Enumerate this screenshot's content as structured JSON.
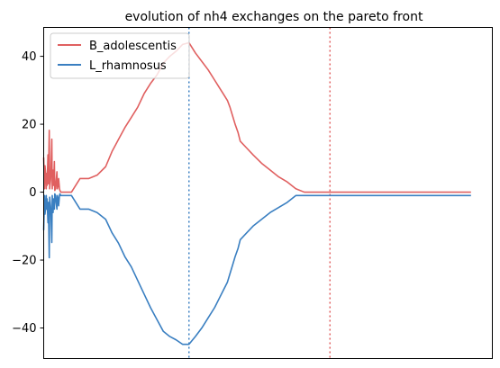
{
  "chart_data": {
    "type": "line",
    "title": "evolution of nh4 exchanges on the pareto front",
    "xlabel": "",
    "ylabel": "",
    "ylim": [
      -49,
      48.5
    ],
    "xlim": [
      0,
      105
    ],
    "x_ticks_shown": false,
    "y_ticks": [
      -40,
      -20,
      0,
      20,
      40
    ],
    "y_tick_labels": [
      "−40",
      "−20",
      "0",
      "20",
      "40"
    ],
    "grid": false,
    "legend": "top-left",
    "series": [
      {
        "name": "B_adolescentis",
        "color": "#e06060",
        "x": [
          0.0,
          0.2,
          0.3,
          0.5,
          0.6,
          0.7,
          0.8,
          1.0,
          1.1,
          1.3,
          1.4,
          1.6,
          1.7,
          1.9,
          2.0,
          2.2,
          2.3,
          2.5,
          2.6,
          2.8,
          2.9,
          3.1,
          3.2,
          3.4,
          3.5,
          3.7,
          3.8,
          4.0,
          4.1,
          4.3,
          4.5,
          6.5,
          8.5,
          10.5,
          12.5,
          14.5,
          16.0,
          17.5,
          19.0,
          20.5,
          22.0,
          23.5,
          25.0,
          26.5,
          28.0,
          29.5,
          31.0,
          32.5,
          34.0,
          35.5,
          37.0,
          38.5,
          40.0,
          41.0,
          42.0,
          43.0,
          43.6,
          44.2,
          44.8,
          45.5,
          46.0,
          47.5,
          49.0,
          51.0,
          53.0,
          55.0,
          57.0,
          59.0,
          61.0,
          63.0,
          65.0,
          67.0,
          69.0,
          71.0,
          73.0,
          75.0,
          77.0,
          78.5,
          80.0,
          80.5,
          85.0,
          90.0,
          95.0,
          100.0
        ],
        "y": [
          10.2,
          1.0,
          7.8,
          5.0,
          1.0,
          5.5,
          2.0,
          11.0,
          2.5,
          18.2,
          1.0,
          3.5,
          6.0,
          15.6,
          1.0,
          6.5,
          2.0,
          9.0,
          0.5,
          1.0,
          3.0,
          6.0,
          1.0,
          2.0,
          4.0,
          1.0,
          0.5,
          0.0,
          0.0,
          0.0,
          0.0,
          0.0,
          4.0,
          4.0,
          5.0,
          7.5,
          12.0,
          15.5,
          19.0,
          22.0,
          25.0,
          29.0,
          32.0,
          34.5,
          38.0,
          40.0,
          41.5,
          43.5,
          44.0,
          41.0,
          38.5,
          36.0,
          33.0,
          31.0,
          29.0,
          27.0,
          25.0,
          22.5,
          20.0,
          17.5,
          15.0,
          13.0,
          11.0,
          8.5,
          6.5,
          4.5,
          3.0,
          1.0,
          0.0,
          0.0,
          0.0,
          0.0,
          0.0,
          0.0,
          0.0,
          0.0,
          0.0,
          0.0,
          0.0,
          0.0,
          0.0,
          0.0,
          0.0,
          0.0
        ]
      },
      {
        "name": "L_rhamnosus",
        "color": "#3a7fc1",
        "x": [
          0.0,
          0.2,
          0.3,
          0.5,
          0.6,
          0.7,
          0.8,
          1.0,
          1.1,
          1.3,
          1.4,
          1.6,
          1.7,
          1.9,
          2.0,
          2.2,
          2.3,
          2.5,
          2.6,
          2.8,
          2.9,
          3.1,
          3.2,
          3.4,
          3.5,
          3.7,
          3.8,
          4.0,
          4.1,
          4.3,
          4.5,
          6.5,
          8.5,
          10.5,
          12.5,
          14.5,
          16.0,
          17.5,
          19.0,
          20.5,
          22.0,
          23.5,
          25.0,
          26.5,
          28.0,
          29.5,
          31.0,
          32.5,
          34.0,
          35.5,
          37.0,
          38.5,
          40.0,
          41.0,
          42.0,
          43.0,
          43.6,
          44.2,
          44.8,
          45.5,
          46.0,
          47.5,
          49.0,
          51.0,
          53.0,
          55.0,
          57.0,
          59.0,
          61.0,
          63.0,
          65.0,
          67.0,
          69.0,
          71.0,
          73.0,
          75.0,
          77.0,
          78.5,
          80.0,
          80.5,
          85.0,
          90.0,
          95.0,
          100.0
        ],
        "y": [
          -11.2,
          -1.0,
          -6.5,
          -4.0,
          -1.0,
          -5.0,
          -2.0,
          -9.0,
          -3.0,
          -19.3,
          -1.5,
          -4.0,
          -6.0,
          -14.8,
          -1.0,
          -6.0,
          -2.0,
          -5.0,
          -0.5,
          -1.0,
          -3.0,
          -5.0,
          -1.0,
          -2.0,
          -4.0,
          -1.0,
          -0.5,
          -1.0,
          -1.0,
          -1.0,
          -1.0,
          -1.0,
          -5.0,
          -5.0,
          -6.0,
          -8.0,
          -12.0,
          -15.0,
          -19.0,
          -22.0,
          -26.0,
          -30.0,
          -34.0,
          -37.5,
          -41.0,
          -42.5,
          -43.5,
          -44.8,
          -44.8,
          -42.5,
          -40.0,
          -37.0,
          -34.0,
          -31.5,
          -29.0,
          -26.5,
          -24.0,
          -21.5,
          -19.0,
          -16.5,
          -14.0,
          -12.0,
          -10.0,
          -8.0,
          -6.0,
          -4.5,
          -3.0,
          -1.0,
          -1.0,
          -1.0,
          -1.0,
          -1.0,
          -1.0,
          -1.0,
          -1.0,
          -1.0,
          -1.0,
          -1.0,
          -1.0,
          -1.0,
          -1.0,
          -1.0,
          -1.0,
          -1.0
        ]
      }
    ],
    "vlines": [
      {
        "x": 34.0,
        "color": "#3a7fc1",
        "style": "dotted"
      },
      {
        "x": 67.0,
        "color": "#e06060",
        "style": "dotted"
      }
    ]
  }
}
